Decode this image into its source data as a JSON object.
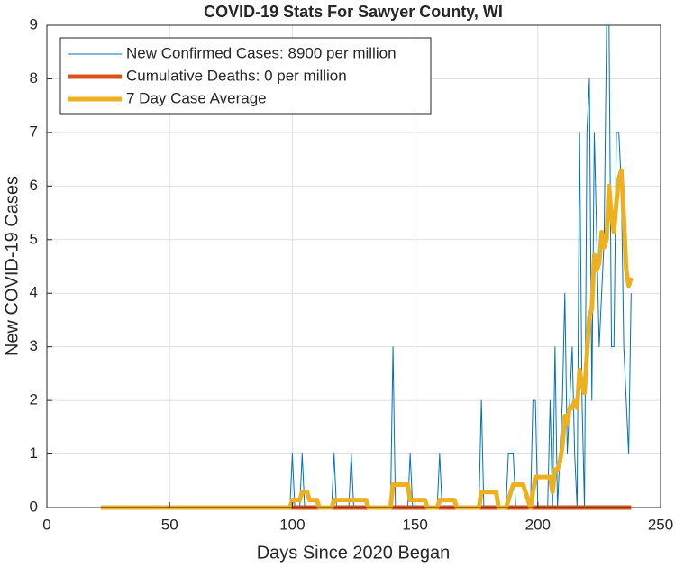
{
  "chart_data": {
    "type": "line",
    "title": "COVID-19 Stats For Sawyer County, WI",
    "xlabel": "Days Since 2020 Began",
    "ylabel": "New COVID-19 Cases",
    "xlim": [
      0,
      250
    ],
    "xticks": [
      0,
      50,
      100,
      150,
      200,
      250
    ],
    "ylim": [
      0,
      9
    ],
    "yticks": [
      0,
      1,
      2,
      3,
      4,
      5,
      6,
      7,
      8,
      9
    ],
    "grid": true,
    "legend": "upper left",
    "x": [
      22,
      23,
      24,
      25,
      26,
      27,
      28,
      29,
      30,
      31,
      32,
      33,
      34,
      35,
      36,
      37,
      38,
      39,
      40,
      41,
      42,
      43,
      44,
      45,
      46,
      47,
      48,
      49,
      50,
      51,
      52,
      53,
      54,
      55,
      56,
      57,
      58,
      59,
      60,
      61,
      62,
      63,
      64,
      65,
      66,
      67,
      68,
      69,
      70,
      71,
      72,
      73,
      74,
      75,
      76,
      77,
      78,
      79,
      80,
      81,
      82,
      83,
      84,
      85,
      86,
      87,
      88,
      89,
      90,
      91,
      92,
      93,
      94,
      95,
      96,
      97,
      98,
      99,
      100,
      101,
      102,
      103,
      104,
      105,
      106,
      107,
      108,
      109,
      110,
      111,
      112,
      113,
      114,
      115,
      116,
      117,
      118,
      119,
      120,
      121,
      122,
      123,
      124,
      125,
      126,
      127,
      128,
      129,
      130,
      131,
      132,
      133,
      134,
      135,
      136,
      137,
      138,
      139,
      140,
      141,
      142,
      143,
      144,
      145,
      146,
      147,
      148,
      149,
      150,
      151,
      152,
      153,
      154,
      155,
      156,
      157,
      158,
      159,
      160,
      161,
      162,
      163,
      164,
      165,
      166,
      167,
      168,
      169,
      170,
      171,
      172,
      173,
      174,
      175,
      176,
      177,
      178,
      179,
      180,
      181,
      182,
      183,
      184,
      185,
      186,
      187,
      188,
      189,
      190,
      191,
      192,
      193,
      194,
      195,
      196,
      197,
      198,
      199,
      200,
      201,
      202,
      203,
      204,
      205,
      206,
      207,
      208,
      209,
      210,
      211,
      212,
      213,
      214,
      215,
      216,
      217,
      218,
      219,
      220,
      221,
      222,
      223,
      224,
      225,
      226,
      227,
      228,
      229,
      230,
      231,
      232,
      233,
      234,
      235,
      236,
      237,
      238
    ],
    "series": [
      {
        "name": "New Confirmed Cases: 8900 per million",
        "color": "#0072bd",
        "width": 1,
        "values": [
          0,
          0,
          0,
          0,
          0,
          0,
          0,
          0,
          0,
          0,
          0,
          0,
          0,
          0,
          0,
          0,
          0,
          0,
          0,
          0,
          0,
          0,
          0,
          0,
          0,
          0,
          0,
          0,
          0,
          0,
          0,
          0,
          0,
          0,
          0,
          0,
          0,
          0,
          0,
          0,
          0,
          0,
          0,
          0,
          0,
          0,
          0,
          0,
          0,
          0,
          0,
          0,
          0,
          0,
          0,
          0,
          0,
          0,
          0,
          0,
          0,
          0,
          0,
          0,
          0,
          0,
          0,
          0,
          0,
          0,
          0,
          0,
          0,
          0,
          0,
          0,
          0,
          0,
          1,
          0,
          0,
          0,
          1,
          0,
          0,
          0,
          0,
          0,
          0,
          0,
          0,
          0,
          0,
          0,
          0,
          1,
          0,
          0,
          0,
          0,
          0,
          0,
          1,
          0,
          0,
          0,
          0,
          0,
          0,
          0,
          0,
          0,
          0,
          0,
          0,
          0,
          0,
          0,
          0,
          3,
          0,
          0,
          0,
          0,
          0,
          0,
          1,
          0,
          0,
          0,
          0,
          0,
          0,
          0,
          0,
          0,
          0,
          0,
          1,
          0,
          0,
          0,
          0,
          0,
          0,
          0,
          0,
          0,
          0,
          0,
          0,
          0,
          0,
          0,
          0,
          2,
          0,
          0,
          0,
          0,
          0,
          0,
          0,
          0,
          0,
          0,
          1,
          1,
          1,
          0,
          0,
          0,
          0,
          0,
          0,
          0,
          2,
          2,
          0,
          0,
          0,
          0,
          0,
          2,
          0,
          3,
          0,
          1,
          2,
          4,
          1,
          2,
          3,
          1,
          0,
          7,
          2,
          0,
          7,
          8,
          2,
          7,
          5,
          3,
          4,
          5,
          9,
          9,
          3,
          3,
          7,
          7,
          6,
          3,
          2,
          1,
          4
        ]
      },
      {
        "name": "Cumulative Deaths: 0 per million",
        "color": "#d95319",
        "width": 5,
        "values": [
          0,
          0,
          0,
          0,
          0,
          0,
          0,
          0,
          0,
          0,
          0,
          0,
          0,
          0,
          0,
          0,
          0,
          0,
          0,
          0,
          0,
          0,
          0,
          0,
          0,
          0,
          0,
          0,
          0,
          0,
          0,
          0,
          0,
          0,
          0,
          0,
          0,
          0,
          0,
          0,
          0,
          0,
          0,
          0,
          0,
          0,
          0,
          0,
          0,
          0,
          0,
          0,
          0,
          0,
          0,
          0,
          0,
          0,
          0,
          0,
          0,
          0,
          0,
          0,
          0,
          0,
          0,
          0,
          0,
          0,
          0,
          0,
          0,
          0,
          0,
          0,
          0,
          0,
          0,
          0,
          0,
          0,
          0,
          0,
          0,
          0,
          0,
          0,
          0,
          0,
          0,
          0,
          0,
          0,
          0,
          0,
          0,
          0,
          0,
          0,
          0,
          0,
          0,
          0,
          0,
          0,
          0,
          0,
          0,
          0,
          0,
          0,
          0,
          0,
          0,
          0,
          0,
          0,
          0,
          0,
          0,
          0,
          0,
          0,
          0,
          0,
          0,
          0,
          0,
          0,
          0,
          0,
          0,
          0,
          0,
          0,
          0,
          0,
          0,
          0,
          0,
          0,
          0,
          0,
          0,
          0,
          0,
          0,
          0,
          0,
          0,
          0,
          0,
          0,
          0,
          0,
          0,
          0,
          0,
          0,
          0,
          0,
          0,
          0,
          0,
          0,
          0,
          0,
          0,
          0,
          0,
          0,
          0,
          0,
          0,
          0,
          0,
          0,
          0,
          0,
          0,
          0,
          0,
          0,
          0,
          0,
          0,
          0,
          0,
          0,
          0,
          0,
          0,
          0,
          0,
          0,
          0,
          0,
          0,
          0,
          0,
          0,
          0,
          0,
          0,
          0,
          0,
          0,
          0,
          0,
          0,
          0,
          0,
          0,
          0,
          0,
          0
        ]
      },
      {
        "name": "7 Day Case Average",
        "color": "#edb120",
        "width": 5,
        "values": [
          0,
          0,
          0,
          0,
          0,
          0,
          0,
          0,
          0,
          0,
          0,
          0,
          0,
          0,
          0,
          0,
          0,
          0,
          0,
          0,
          0,
          0,
          0,
          0,
          0,
          0,
          0,
          0,
          0,
          0,
          0,
          0,
          0,
          0,
          0,
          0,
          0,
          0,
          0,
          0,
          0,
          0,
          0,
          0,
          0,
          0,
          0,
          0,
          0,
          0,
          0,
          0,
          0,
          0,
          0,
          0,
          0,
          0,
          0,
          0,
          0,
          0,
          0,
          0,
          0,
          0,
          0,
          0,
          0,
          0,
          0,
          0,
          0,
          0,
          0,
          0,
          0,
          0,
          0.14,
          0.14,
          0.14,
          0.14,
          0.29,
          0.29,
          0.29,
          0.14,
          0.14,
          0.14,
          0.14,
          0,
          0,
          0,
          0,
          0,
          0,
          0.14,
          0.14,
          0.14,
          0.14,
          0.14,
          0.14,
          0.14,
          0.14,
          0.14,
          0.14,
          0.14,
          0.14,
          0.14,
          0.14,
          0,
          0,
          0,
          0,
          0,
          0,
          0,
          0,
          0,
          0,
          0.43,
          0.43,
          0.43,
          0.43,
          0.43,
          0.43,
          0.43,
          0.14,
          0.14,
          0.14,
          0.14,
          0.14,
          0.14,
          0.14,
          0,
          0,
          0,
          0,
          0,
          0.14,
          0.14,
          0.14,
          0.14,
          0.14,
          0.14,
          0.14,
          0,
          0,
          0,
          0,
          0,
          0,
          0,
          0,
          0,
          0,
          0.29,
          0.29,
          0.29,
          0.29,
          0.29,
          0.29,
          0.29,
          0,
          0,
          0,
          0,
          0.14,
          0.29,
          0.43,
          0.43,
          0.43,
          0.43,
          0.43,
          0.29,
          0.14,
          0,
          0.29,
          0.57,
          0.57,
          0.57,
          0.57,
          0.57,
          0.57,
          0.57,
          0.29,
          0.71,
          0.71,
          0.86,
          1.14,
          1.71,
          1.57,
          1.86,
          1.86,
          2,
          1.86,
          2.57,
          2.29,
          2.14,
          2.86,
          3.57,
          3.71,
          4.71,
          4.43,
          4.57,
          5.14,
          4.86,
          5,
          6,
          5.43,
          5.14,
          5.71,
          6.14,
          6.29,
          5.43,
          4.43,
          4.14,
          4.29
        ]
      }
    ]
  }
}
